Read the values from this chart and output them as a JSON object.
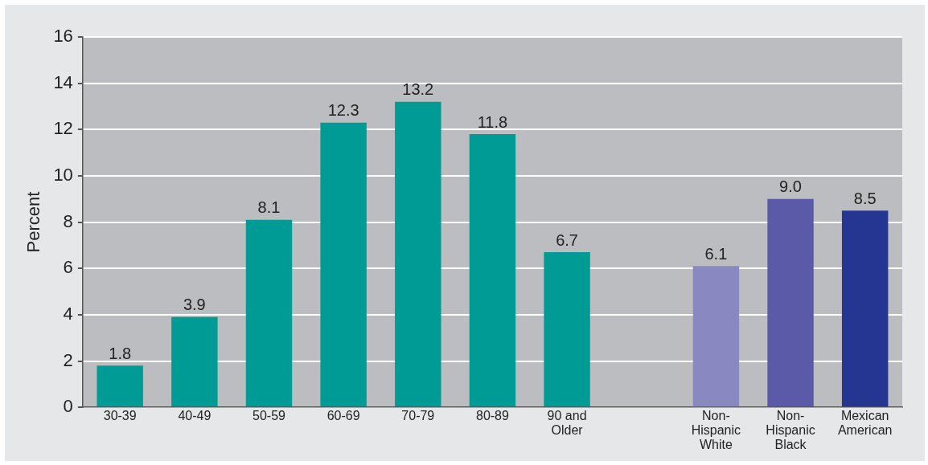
{
  "chart_data": {
    "type": "bar",
    "ylabel": "Percent",
    "categories": [
      "30-39",
      "40-49",
      "50-59",
      "60-69",
      "70-79",
      "80-89",
      "90 and Older",
      null,
      "Non-Hispanic White",
      "Non-Hispanic Black",
      "Mexican American"
    ],
    "values": [
      1.8,
      3.9,
      8.1,
      12.3,
      13.2,
      11.8,
      6.7,
      null,
      6.1,
      9.0,
      8.5
    ],
    "value_labels": [
      "1.8",
      "3.9",
      "8.1",
      "12.3",
      "13.2",
      "11.8",
      "6.7",
      null,
      "6.1",
      "9.0",
      "8.5"
    ],
    "colors": [
      "#009b94",
      "#009b94",
      "#009b94",
      "#009b94",
      "#009b94",
      "#009b94",
      "#009b94",
      "#009b94",
      "#8a88c0",
      "#5a5aa8",
      "#243592"
    ],
    "ylim": [
      0,
      16
    ],
    "yticks": [
      0,
      2,
      4,
      6,
      8,
      10,
      12,
      14,
      16
    ],
    "grid": "y",
    "legend": false
  }
}
